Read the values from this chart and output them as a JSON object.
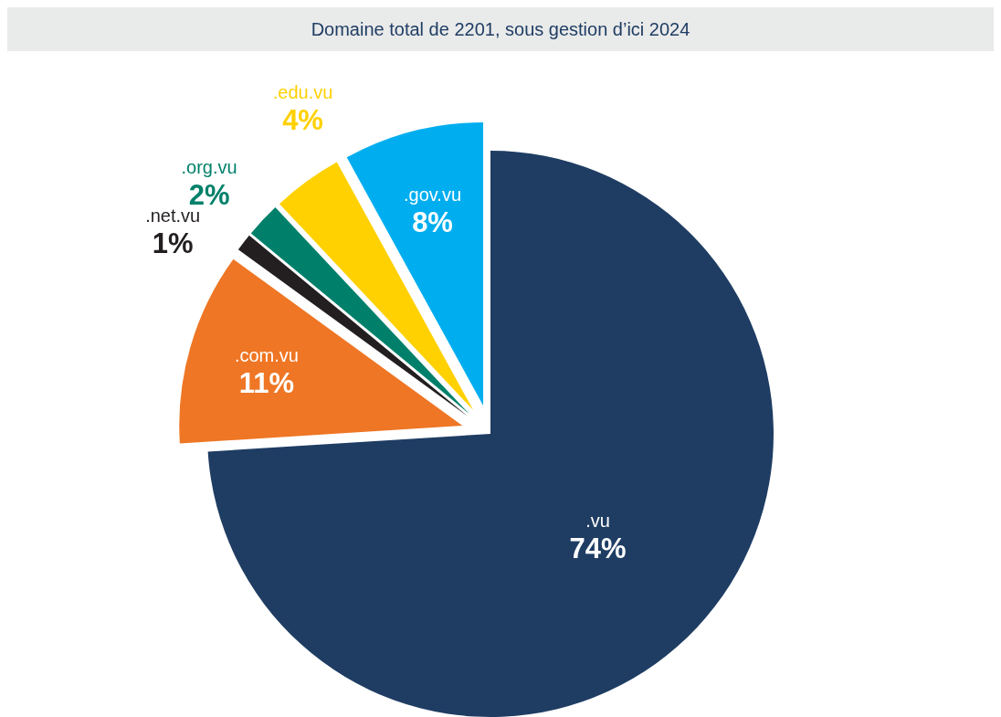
{
  "chart_data": {
    "type": "pie",
    "title": "Domaine total de 2201, sous gestion d’ici 2024",
    "categories": [
      ".vu",
      ".com.vu",
      ".net.vu",
      ".org.vu",
      ".edu.vu",
      ".gov.vu"
    ],
    "values": [
      74,
      11,
      1,
      2,
      4,
      8
    ],
    "value_labels": [
      "74%",
      "11%",
      "1%",
      "2%",
      "4%",
      "8%"
    ],
    "colors": [
      "#1f3d63",
      "#ee7624",
      "#231f20",
      "#00806a",
      "#ffd100",
      "#00aeef"
    ]
  }
}
